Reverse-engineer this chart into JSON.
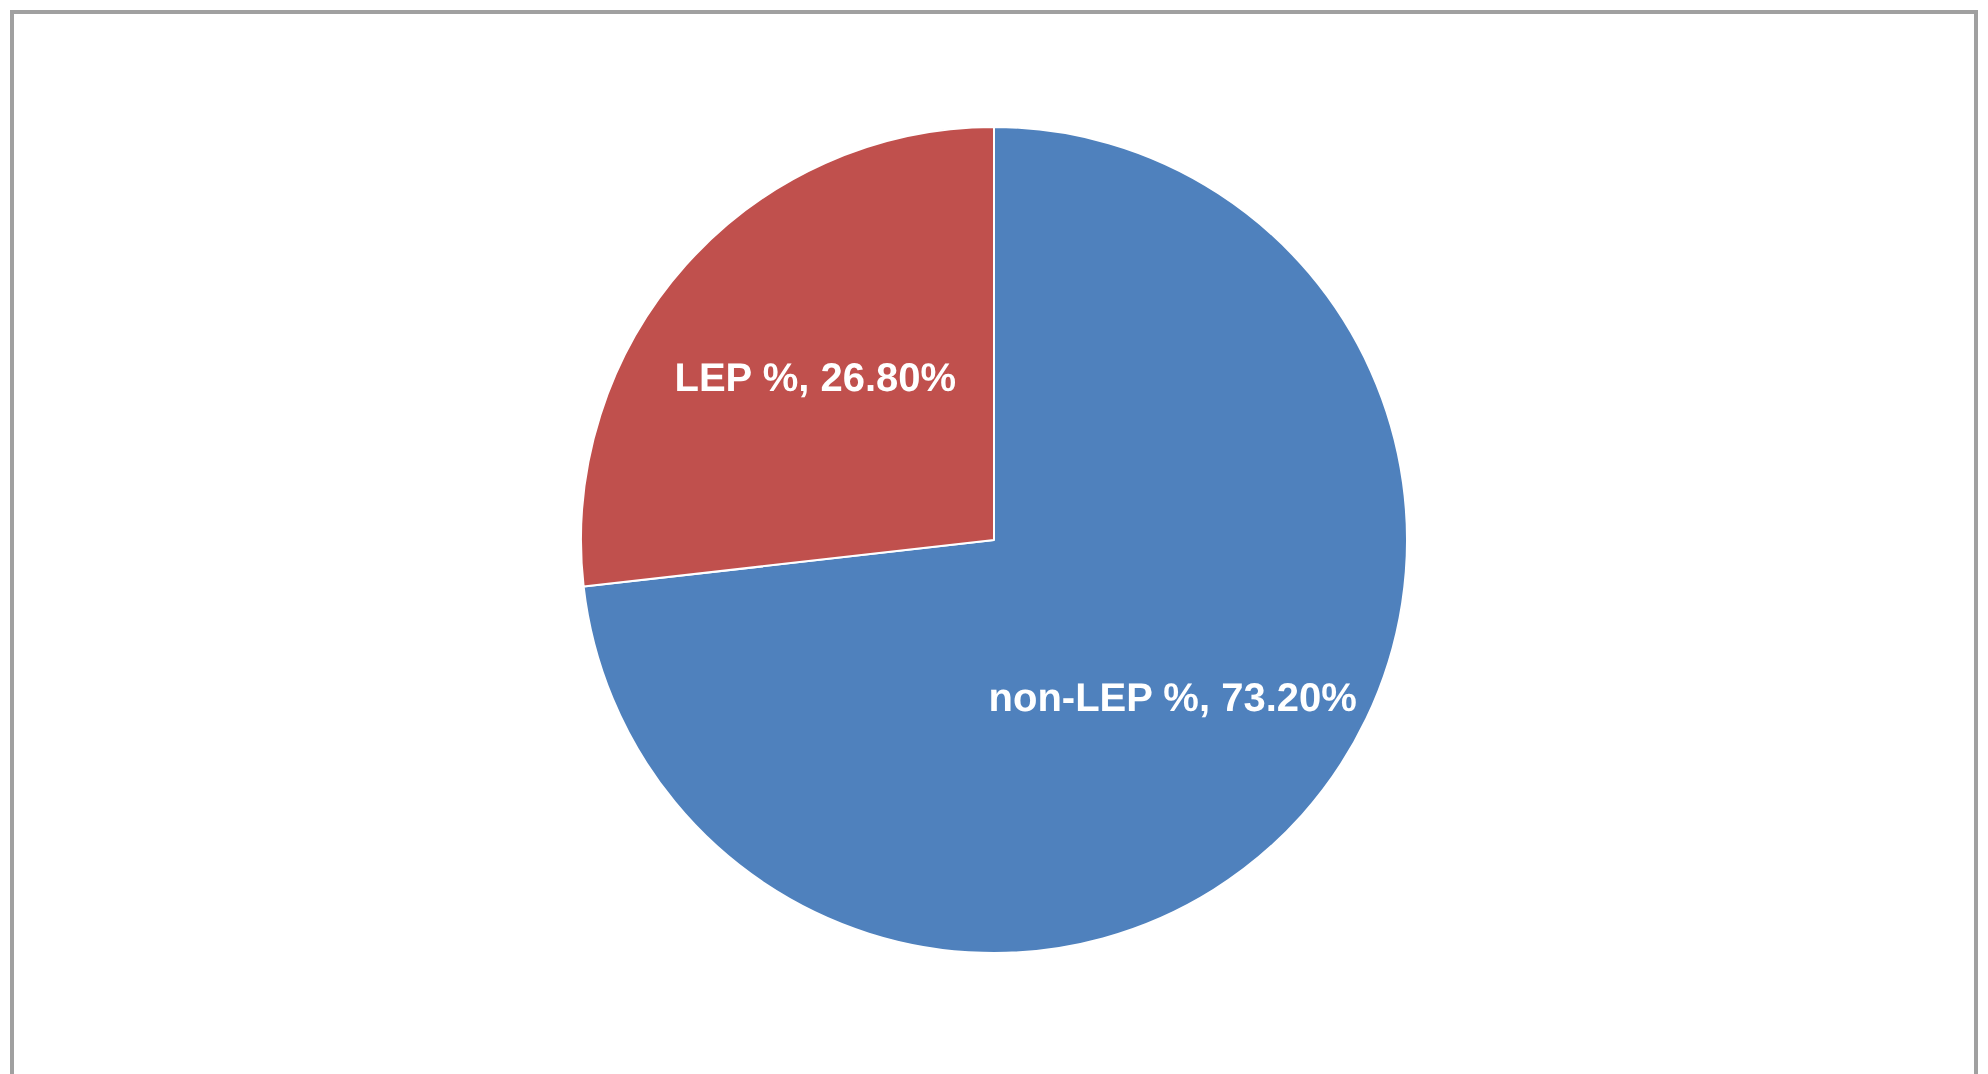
{
  "chart_data": {
    "type": "pie",
    "categories": [
      "non-LEP %",
      "LEP %"
    ],
    "values": [
      73.2,
      26.8
    ],
    "colors": [
      "#4f81bd",
      "#c0504d"
    ],
    "value_labels": [
      "73.20%",
      "26.80%"
    ],
    "legend": false
  }
}
